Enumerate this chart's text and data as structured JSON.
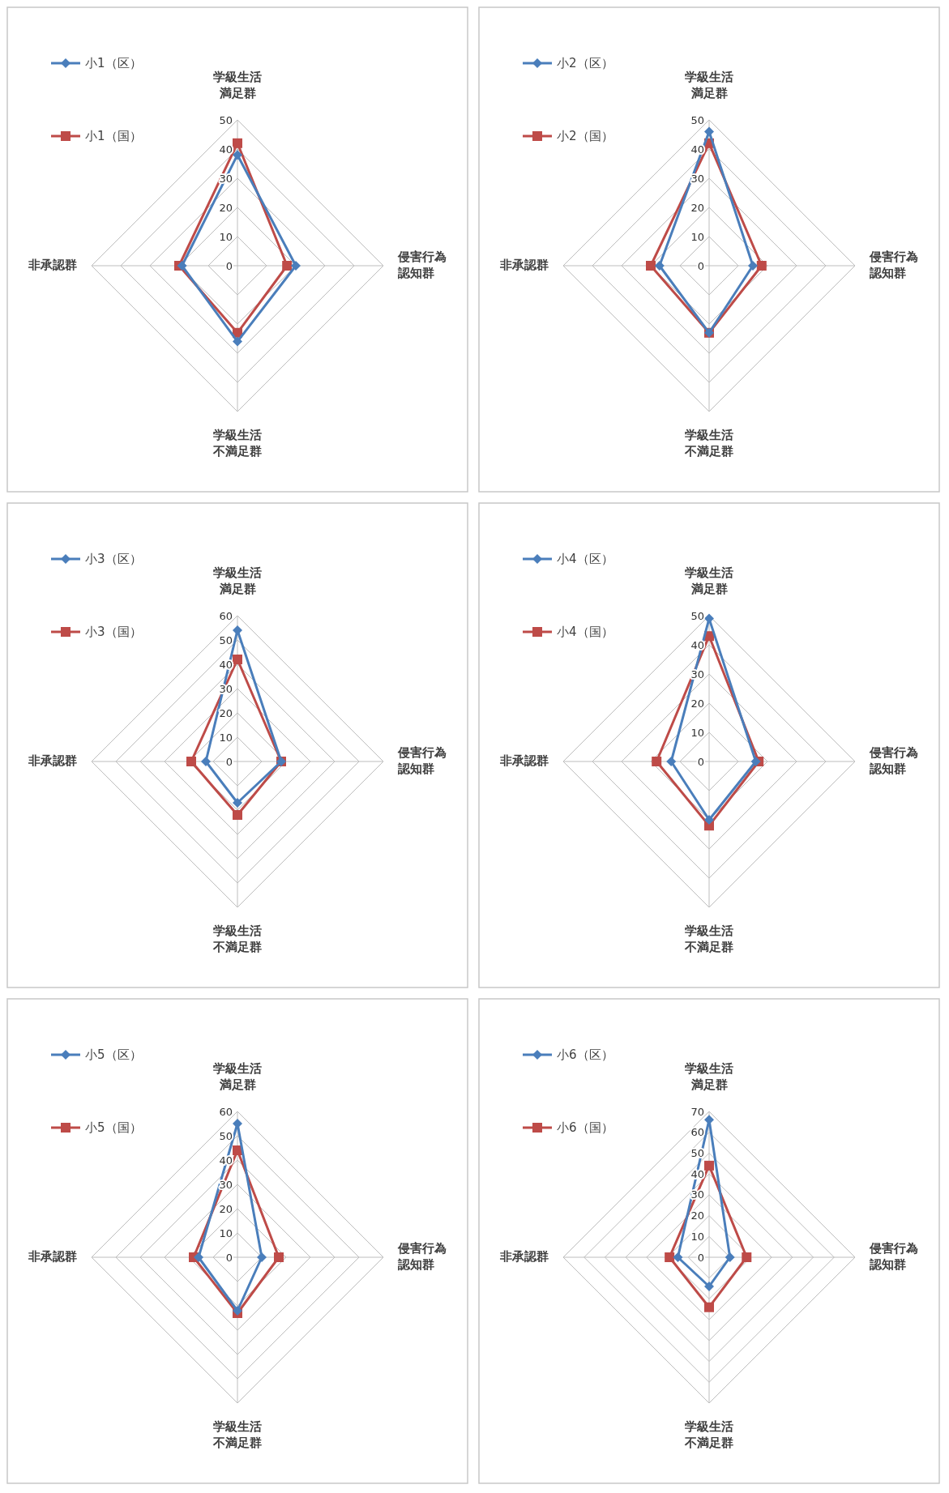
{
  "chart_data": [
    {
      "type": "radar",
      "categories": [
        "学級生活満足群",
        "侵害行為認知群",
        "学級生活不満足群",
        "非承認群"
      ],
      "ylim": [
        0,
        50
      ],
      "yticks": [
        0,
        10,
        20,
        30,
        40,
        50
      ],
      "grid": true,
      "legend": "top left",
      "series": [
        {
          "name": "小1（区）",
          "color": "#4a7ebb",
          "marker": "diamond",
          "values": [
            38,
            20,
            26,
            19
          ]
        },
        {
          "name": "小1（国）",
          "color": "#be4b48",
          "marker": "square",
          "values": [
            42,
            17,
            23,
            20
          ]
        }
      ]
    },
    {
      "type": "radar",
      "categories": [
        "学級生活満足群",
        "侵害行為認知群",
        "学級生活不満足群",
        "非承認群"
      ],
      "ylim": [
        0,
        50
      ],
      "yticks": [
        0,
        10,
        20,
        30,
        40,
        50
      ],
      "grid": true,
      "legend": "top left",
      "series": [
        {
          "name": "小2（区）",
          "color": "#4a7ebb",
          "marker": "diamond",
          "values": [
            46,
            15,
            23,
            17
          ]
        },
        {
          "name": "小2（国）",
          "color": "#be4b48",
          "marker": "square",
          "values": [
            42,
            18,
            23,
            20
          ]
        }
      ]
    },
    {
      "type": "radar",
      "categories": [
        "学級生活満足群",
        "侵害行為認知群",
        "学級生活不満足群",
        "非承認群"
      ],
      "ylim": [
        0,
        60
      ],
      "yticks": [
        0,
        10,
        20,
        30,
        40,
        50,
        60
      ],
      "grid": true,
      "legend": "top left",
      "series": [
        {
          "name": "小3（区）",
          "color": "#4a7ebb",
          "marker": "diamond",
          "values": [
            54,
            18,
            17,
            13
          ]
        },
        {
          "name": "小3（国）",
          "color": "#be4b48",
          "marker": "square",
          "values": [
            42,
            18,
            22,
            19
          ]
        }
      ]
    },
    {
      "type": "radar",
      "categories": [
        "学級生活満足群",
        "侵害行為認知群",
        "学級生活不満足群",
        "非承認群"
      ],
      "ylim": [
        0,
        50
      ],
      "yticks": [
        0,
        10,
        20,
        30,
        40,
        50
      ],
      "grid": true,
      "legend": "top left",
      "series": [
        {
          "name": "小4（区）",
          "color": "#4a7ebb",
          "marker": "diamond",
          "values": [
            49,
            16,
            20,
            13
          ]
        },
        {
          "name": "小4（国）",
          "color": "#be4b48",
          "marker": "square",
          "values": [
            43,
            17,
            22,
            18
          ]
        }
      ]
    },
    {
      "type": "radar",
      "categories": [
        "学級生活満足群",
        "侵害行為認知群",
        "学級生活不満足群",
        "非承認群"
      ],
      "ylim": [
        0,
        60
      ],
      "yticks": [
        0,
        10,
        20,
        30,
        40,
        50,
        60
      ],
      "grid": true,
      "legend": "top left",
      "series": [
        {
          "name": "小5（区）",
          "color": "#4a7ebb",
          "marker": "diamond",
          "values": [
            55,
            10,
            22,
            16
          ]
        },
        {
          "name": "小5（国）",
          "color": "#be4b48",
          "marker": "square",
          "values": [
            44,
            17,
            23,
            18
          ]
        }
      ]
    },
    {
      "type": "radar",
      "categories": [
        "学級生活満足群",
        "侵害行為認知群",
        "学級生活不満足群",
        "非承認群"
      ],
      "ylim": [
        0,
        70
      ],
      "yticks": [
        0,
        10,
        20,
        30,
        40,
        50,
        60,
        70
      ],
      "grid": true,
      "legend": "top left",
      "series": [
        {
          "name": "小6（区）",
          "color": "#4a7ebb",
          "marker": "diamond",
          "values": [
            66,
            10,
            14,
            15
          ]
        },
        {
          "name": "小6（国）",
          "color": "#be4b48",
          "marker": "square",
          "values": [
            44,
            18,
            24,
            19
          ]
        }
      ]
    }
  ]
}
